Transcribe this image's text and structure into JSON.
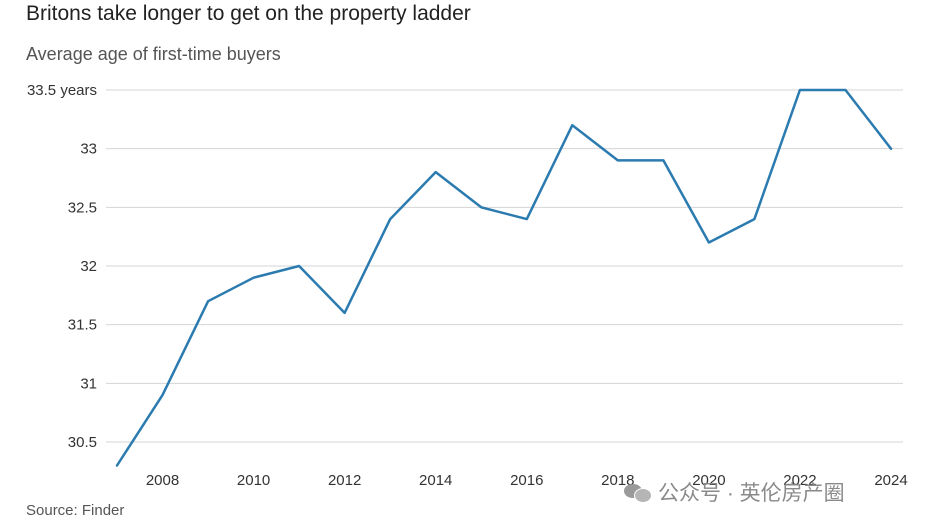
{
  "chart_data": {
    "type": "line",
    "title": "Britons take longer to get on the property ladder",
    "subtitle": "Average age of first-time buyers",
    "source": "Source: Finder",
    "ylim": [
      30.5,
      33.5
    ],
    "y_ticks": [
      {
        "value": 33.5,
        "label": "33.5 years"
      },
      {
        "value": 33,
        "label": "33"
      },
      {
        "value": 32.5,
        "label": "32.5"
      },
      {
        "value": 32,
        "label": "32"
      },
      {
        "value": 31.5,
        "label": "31.5"
      },
      {
        "value": 31,
        "label": "31"
      },
      {
        "value": 30.5,
        "label": "30.5"
      }
    ],
    "x_ticks": [
      "2008",
      "2010",
      "2012",
      "2014",
      "2016",
      "2018",
      "2020",
      "2022",
      "2024"
    ],
    "grid": true,
    "line_color": "#2b7bb0",
    "series": [
      {
        "x": [
          2007,
          2008,
          2009,
          2010,
          2011,
          2012,
          2013,
          2014,
          2015,
          2016,
          2017,
          2018,
          2019,
          2020,
          2021,
          2022,
          2023,
          2024
        ],
        "values": [
          30.3,
          30.9,
          31.7,
          31.9,
          32.0,
          31.6,
          32.4,
          32.8,
          32.5,
          32.4,
          33.2,
          32.9,
          32.9,
          32.2,
          32.4,
          33.5,
          33.5,
          33.0
        ]
      }
    ]
  },
  "watermark": "公众号 · 英伦房产圈"
}
